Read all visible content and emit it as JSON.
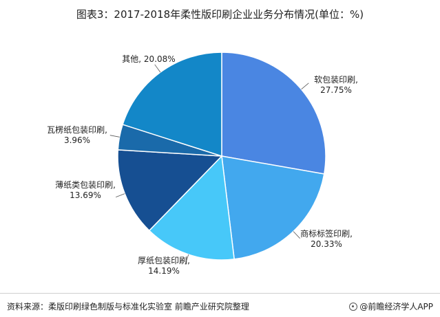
{
  "title": "图表3：2017-2018年柔性版印刷企业业务分布情况(单位：%)",
  "chart_data": {
    "type": "pie",
    "title": "图表3：2017-2018年柔性版印刷企业业务分布情况(单位：%)",
    "slices": [
      {
        "name": "软包装印刷",
        "value": 27.75,
        "value_label": "27.75%",
        "color": "#4a86e2"
      },
      {
        "name": "商标标签印刷",
        "value": 20.33,
        "value_label": "20.33%",
        "color": "#42a8ee"
      },
      {
        "name": "厚纸包装印刷",
        "value": 14.19,
        "value_label": "14.19%",
        "color": "#47c8f9"
      },
      {
        "name": "薄纸类包装印刷",
        "value": 13.69,
        "value_label": "13.69%",
        "color": "#164f92"
      },
      {
        "name": "瓦楞纸包装印刷",
        "value": 3.96,
        "value_label": "3.96%",
        "color": "#1a6aaa"
      },
      {
        "name": "其他",
        "value": 20.08,
        "value_label": "20.08%",
        "color": "#1387c8"
      }
    ]
  },
  "footer": {
    "source": "资料来源：柔版印刷绿色制版与标准化实验室 前瞻产业研究院整理",
    "brand": "@前瞻经济学人APP"
  }
}
